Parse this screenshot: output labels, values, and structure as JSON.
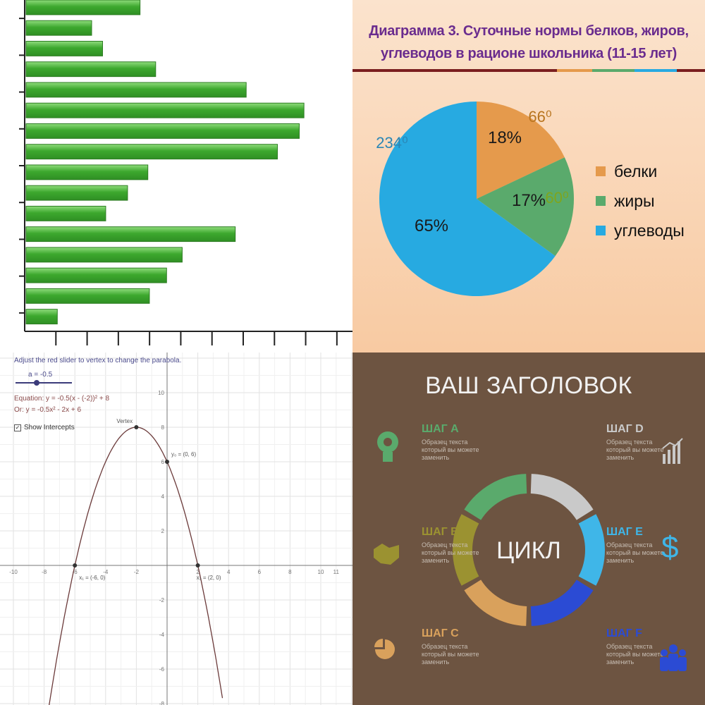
{
  "chart_data": [
    {
      "type": "bar",
      "orientation": "horizontal",
      "values": [
        7.3,
        4.2,
        4.9,
        8.3,
        14.1,
        17.8,
        17.5,
        16.1,
        7.8,
        6.5,
        5.1,
        13.4,
        10.0,
        9.0,
        7.9,
        2.0
      ],
      "xlim": [
        0,
        21
      ],
      "ylim": [
        0,
        18
      ],
      "grid": false,
      "bar_color": "#3da82e"
    },
    {
      "type": "pie",
      "title_line1": "Диаграмма 3. Суточные нормы белков, жиров,",
      "title_line2": "углеводов в рационе школьника (11-15 лет)",
      "slices": [
        {
          "label": "белки",
          "value": 18,
          "pct_label": "18%",
          "deg_label": "66⁰",
          "color": "#e59a4c",
          "deg_color": "#b8741e"
        },
        {
          "label": "жиры",
          "value": 17,
          "pct_label": "17%",
          "deg_label": "60⁰",
          "color": "#5aaa6c",
          "deg_color": "#7fa51d"
        },
        {
          "label": "углеводы",
          "value": 65,
          "pct_label": "65%",
          "deg_label": "234⁰",
          "color": "#27aae1",
          "deg_color": "#2a86b5"
        }
      ],
      "legend_position": "right",
      "title_color": "#6a2c8e",
      "rule_colors": [
        "#7a1f1f",
        "#e59a4c",
        "#5aaa6c",
        "#27aae1",
        "#7a1f1f"
      ]
    },
    {
      "type": "line",
      "function": "y = -0.5x^2 - 2x + 6",
      "x": [
        -6,
        -5.5,
        -5,
        -4.5,
        -4,
        -3.5,
        -3,
        -2.5,
        -2,
        -1.5,
        -1,
        -0.5,
        0,
        0.5,
        1,
        1.5,
        2,
        2.5,
        3,
        3.5
      ],
      "y": [
        0,
        1.875,
        3.5,
        4.875,
        6,
        6.875,
        7.5,
        7.875,
        8,
        7.875,
        7.5,
        6.875,
        6,
        4.875,
        3.5,
        1.875,
        0,
        -2.125,
        -4.5,
        -7.125
      ],
      "xlim": [
        -12,
        12
      ],
      "ylim": [
        -9,
        12
      ],
      "xticks": [
        -12,
        -10,
        -8,
        -6,
        -4,
        -2,
        2,
        4,
        6,
        8,
        10,
        11
      ],
      "yticks": [
        -8,
        -6,
        -4,
        -2,
        2,
        4,
        6,
        8,
        10
      ],
      "grid": true,
      "points": [
        {
          "x": -2,
          "y": 8,
          "label": "Vertex"
        },
        {
          "x": 0,
          "y": 6,
          "label": "y₀ = (0, 6)"
        },
        {
          "x": -6,
          "y": 0,
          "label": "x₁ = (-6, 0)"
        },
        {
          "x": 2,
          "y": 0,
          "label": "x₂ = (2, 0)"
        }
      ],
      "panel_text": {
        "instruction": "Adjust the red slider to vertex to change the parabola.",
        "slider_label": "a = -0.5",
        "equation1": "Equation: y = -0.5(x - (-2))² + 8",
        "equation2": "Or: y = -0.5x² - 2x + 6",
        "checkbox_label": "Show Intercepts"
      }
    }
  ],
  "cycle": {
    "title": "ВАШ ЗАГОЛОВОК",
    "center_label": "ЦИКЛ",
    "step_text": "Образец текста который вы можете заменить",
    "steps": [
      {
        "title": "ШАГ А",
        "icon": "lightbulb-gear-icon",
        "color": "#5aaa6c"
      },
      {
        "title": "ШАГ В",
        "icon": "handshake-icon",
        "color": "#9b9231"
      },
      {
        "title": "ШАГ С",
        "icon": "pie-chart-icon",
        "color": "#d9a15c"
      },
      {
        "title": "ШАГ D",
        "icon": "bar-chart-icon",
        "color": "#c9c9c9"
      },
      {
        "title": "ШАГ E",
        "icon": "dollar-icon",
        "color": "#3fb6e8"
      },
      {
        "title": "ШАГ F",
        "icon": "people-icon",
        "color": "#2b4bd4"
      }
    ],
    "ring_colors": [
      "#c9c9c9",
      "#3fb6e8",
      "#2b4bd4",
      "#d9a15c",
      "#9b9231",
      "#5aaa6c"
    ]
  }
}
